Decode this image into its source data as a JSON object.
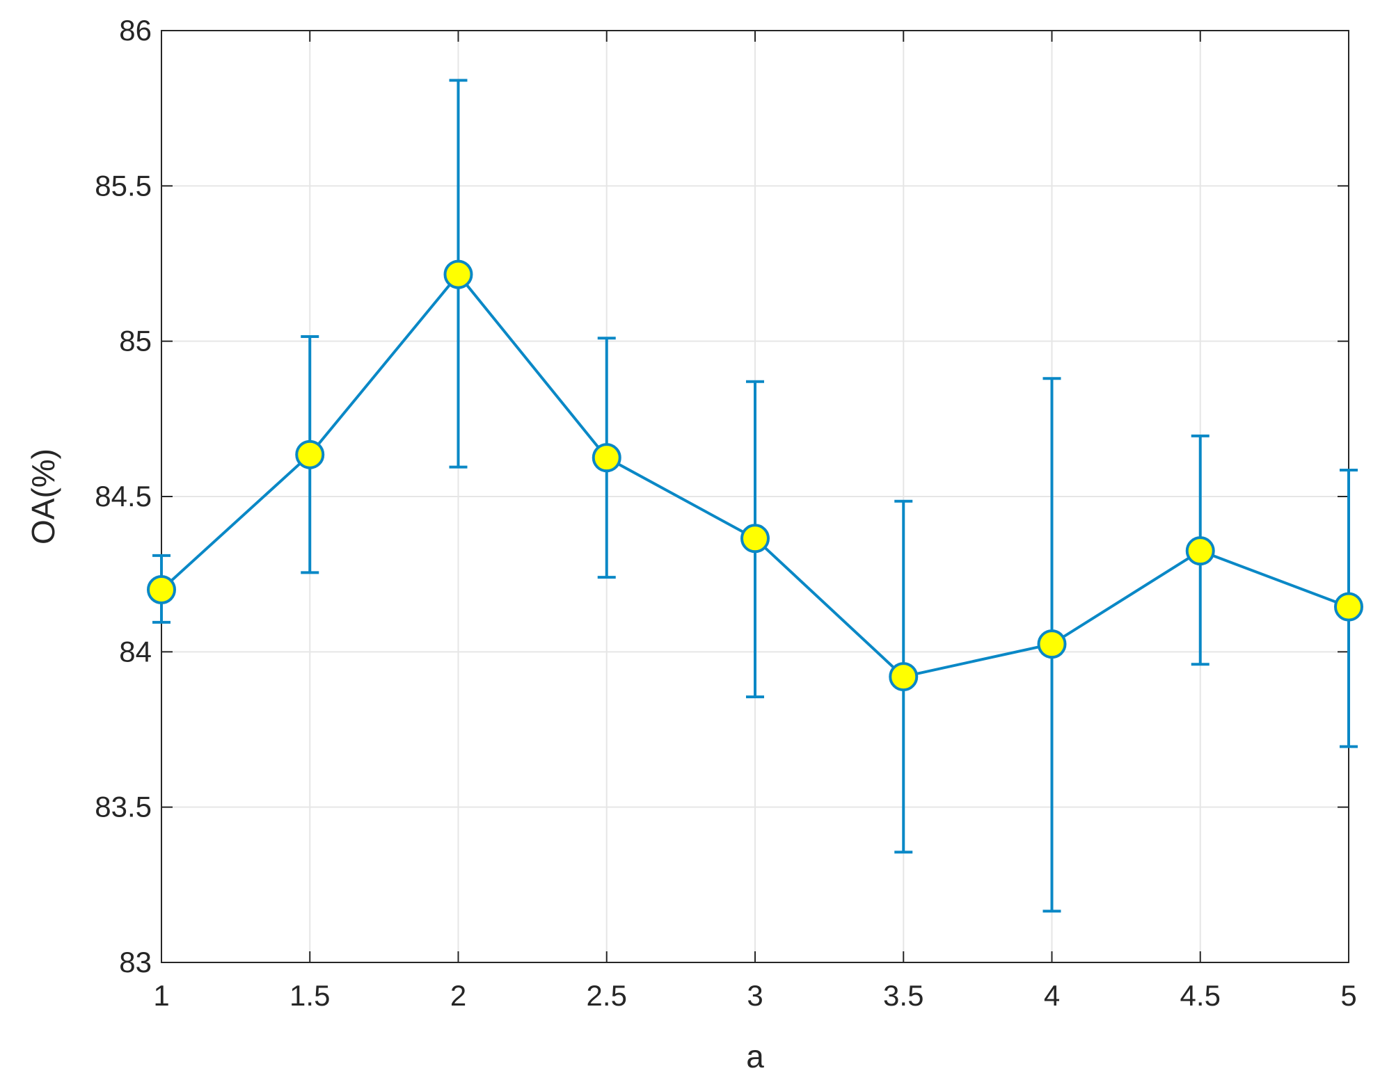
{
  "chart_data": {
    "type": "line",
    "title": "",
    "xlabel": "a",
    "ylabel": "OA(%)",
    "xlim": [
      1,
      5
    ],
    "ylim": [
      83,
      86
    ],
    "xticks": [
      "1",
      "1.5",
      "2",
      "2.5",
      "3",
      "3.5",
      "4",
      "4.5",
      "5"
    ],
    "yticks": [
      "83",
      "83.5",
      "84",
      "84.5",
      "85",
      "85.5",
      "86"
    ],
    "grid": true,
    "legend": "none",
    "colors": {
      "line": "#0a88c6",
      "marker_fill": "#ffff00",
      "marker_edge": "#0a88c6",
      "axis": "#262626",
      "grid": "#e6e6e6"
    },
    "series": [
      {
        "x": [
          1,
          1.5,
          2,
          2.5,
          3,
          3.5,
          4,
          4.5,
          5
        ],
        "y": [
          84.2,
          84.635,
          85.215,
          84.625,
          84.365,
          83.92,
          84.025,
          84.325,
          84.145
        ],
        "err_low": [
          84.095,
          84.255,
          84.595,
          84.24,
          83.855,
          83.355,
          83.165,
          83.96,
          83.695
        ],
        "err_high": [
          84.31,
          85.015,
          85.84,
          85.01,
          84.87,
          84.485,
          84.88,
          84.695,
          84.585
        ]
      }
    ]
  }
}
